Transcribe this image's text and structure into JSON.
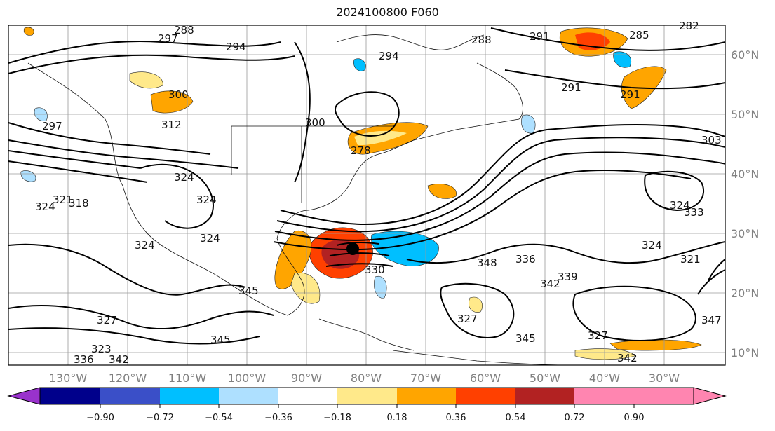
{
  "title": "2024100800 F060",
  "longitude_labels": [
    "130°W",
    "120°W",
    "110°W",
    "100°W",
    "90°W",
    "80°W",
    "70°W",
    "60°W",
    "50°W",
    "40°W",
    "30°W"
  ],
  "latitude_labels": [
    "60°N",
    "50°N",
    "40°N",
    "30°N",
    "20°N",
    "10°N"
  ],
  "colorbar": {
    "ticks": [
      "−0.90",
      "−0.72",
      "−0.54",
      "−0.36",
      "−0.18",
      "0.18",
      "0.36",
      "0.54",
      "0.72",
      "0.90"
    ],
    "colors": [
      "#9932cc",
      "#00008b",
      "#3a4fc8",
      "#00bfff",
      "#aee0ff",
      "#ffffff",
      "#ffe98a",
      "#ffa500",
      "#ff4000",
      "#b22222",
      "#ff85b0"
    ]
  },
  "contour_labels": [
    "288",
    "297",
    "294",
    "288",
    "294",
    "291",
    "285",
    "282",
    "300",
    "291",
    "297",
    "312",
    "300",
    "291",
    "278",
    "303",
    "324",
    "324",
    "324",
    "321",
    "318",
    "324",
    "324",
    "324",
    "348",
    "336",
    "324",
    "321",
    "339",
    "342",
    "333",
    "330",
    "345",
    "345",
    "327",
    "327",
    "327",
    "342",
    "336",
    "342",
    "323",
    "345",
    "347"
  ],
  "storm_marker": "filled-circle"
}
